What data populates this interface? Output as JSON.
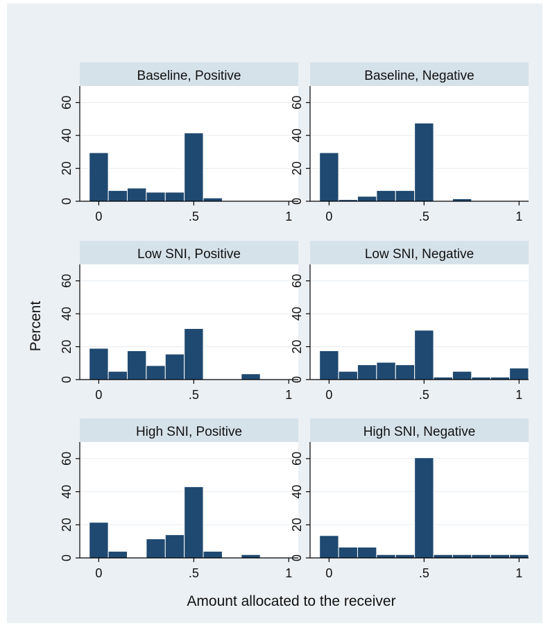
{
  "chart_data": {
    "type": "bar",
    "xlabel": "Amount allocated to the receiver",
    "ylabel": "Percent",
    "xlim": [
      -0.1,
      1.05
    ],
    "ylim": [
      0,
      70
    ],
    "x_ticks": [
      0,
      0.5,
      1
    ],
    "x_tick_labels": [
      "0",
      ".5",
      "1"
    ],
    "y_ticks": [
      0,
      20,
      40,
      60
    ],
    "y_tick_labels": [
      "0",
      "20",
      "40",
      "60"
    ],
    "grid": true,
    "bar_color": "#1f4970",
    "bin_width": 0.1,
    "bin_centers": [
      0,
      0.1,
      0.2,
      0.3,
      0.4,
      0.5,
      0.6,
      0.7,
      0.8,
      0.9,
      1.0
    ],
    "panels": [
      {
        "title": "Baseline, Positive",
        "values": [
          29.5,
          6.5,
          8,
          5.5,
          5.5,
          41.5,
          2,
          0,
          0,
          0,
          0
        ]
      },
      {
        "title": "Baseline, Negative",
        "values": [
          29.5,
          1,
          3,
          6.5,
          6.5,
          47.5,
          0,
          1.5,
          0,
          0,
          0
        ]
      },
      {
        "title": "Low SNI, Positive",
        "values": [
          19,
          5,
          17.5,
          8.5,
          15.5,
          31,
          0,
          0,
          3.5,
          0,
          0
        ]
      },
      {
        "title": "Low SNI, Negative",
        "values": [
          17.5,
          5,
          9,
          10.5,
          9,
          30,
          1.5,
          5,
          1.5,
          1.5,
          7
        ]
      },
      {
        "title": "High SNI, Positive",
        "values": [
          21.5,
          4,
          0,
          11.5,
          14,
          43,
          4,
          0,
          2,
          0,
          0
        ]
      },
      {
        "title": "High SNI, Negative",
        "values": [
          13.5,
          6.5,
          6.5,
          2,
          2,
          60.5,
          2,
          2,
          2,
          2,
          2
        ]
      }
    ]
  }
}
